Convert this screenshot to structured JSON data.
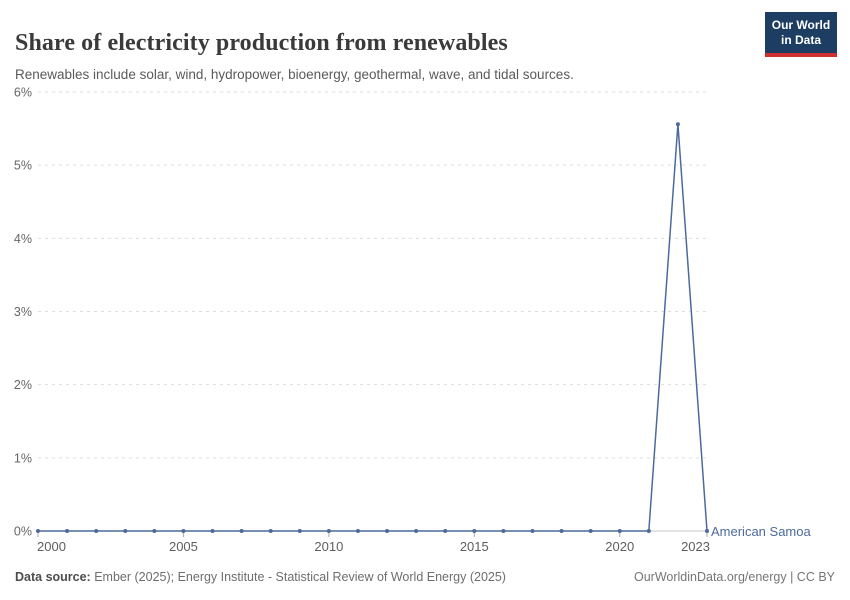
{
  "header": {
    "title": "Share of electricity production from renewables",
    "subtitle": "Renewables include solar, wind, hydropower, bioenergy, geothermal, wave, and tidal sources."
  },
  "logo": {
    "line1": "Our World",
    "line2": "in Data",
    "bg_color": "#1d3d63",
    "accent_color": "#cf2f2f"
  },
  "chart_data": {
    "type": "line",
    "title": "Share of electricity production from renewables",
    "x": [
      2000,
      2001,
      2002,
      2003,
      2004,
      2005,
      2006,
      2007,
      2008,
      2009,
      2010,
      2011,
      2012,
      2013,
      2014,
      2015,
      2016,
      2017,
      2018,
      2019,
      2020,
      2021,
      2022,
      2023
    ],
    "series": [
      {
        "name": "American Samoa",
        "color": "#4C6A9C",
        "values": [
          0,
          0,
          0,
          0,
          0,
          0,
          0,
          0,
          0,
          0,
          0,
          0,
          0,
          0,
          0,
          0,
          0,
          0,
          0,
          0,
          0,
          0,
          5.56,
          0
        ]
      }
    ],
    "xlabel": "",
    "ylabel": "",
    "ylim": [
      0,
      6
    ],
    "yticks": [
      0,
      1,
      2,
      3,
      4,
      5,
      6
    ],
    "ytick_suffix": "%",
    "xticks": [
      2000,
      2005,
      2010,
      2015,
      2020,
      2023
    ],
    "grid": "horizontal-dashed",
    "legend_position": "end-of-line-label"
  },
  "footer": {
    "source_label": "Data source:",
    "source_text": " Ember (2025); Energy Institute - Statistical Review of World Energy (2025)",
    "right_text": "OurWorldinData.org/energy | CC BY"
  }
}
